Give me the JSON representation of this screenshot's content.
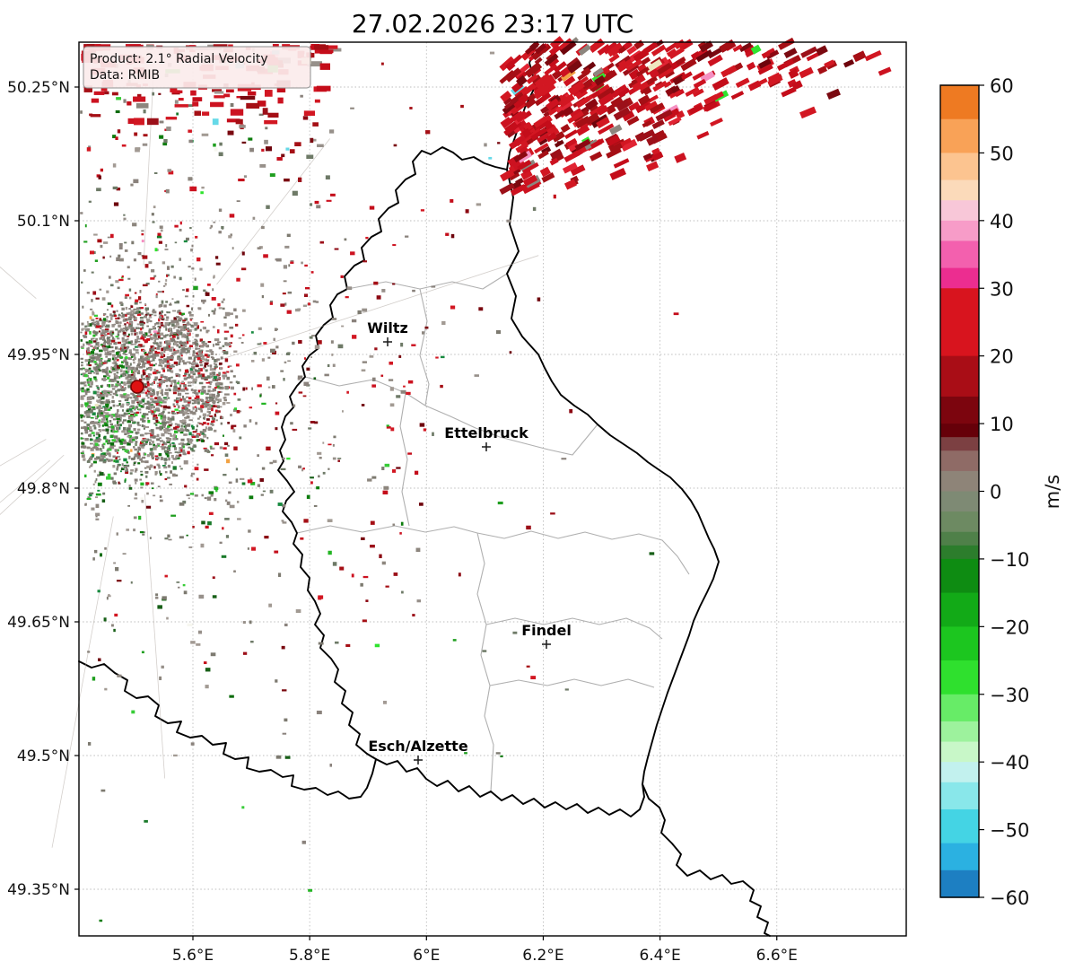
{
  "title": "27.02.2026 23:17 UTC",
  "info_box": {
    "line1": "Product: 2.1° Radial Velocity",
    "line2": "Data: RMIB"
  },
  "axes": {
    "x_ticks": [
      {
        "label": "5.6°E",
        "lon": 5.6
      },
      {
        "label": "5.8°E",
        "lon": 5.8
      },
      {
        "label": "6°E",
        "lon": 6.0
      },
      {
        "label": "6.2°E",
        "lon": 6.2
      },
      {
        "label": "6.4°E",
        "lon": 6.4
      },
      {
        "label": "6.6°E",
        "lon": 6.6
      }
    ],
    "y_ticks": [
      {
        "label": "50.25°N",
        "lat": 50.25
      },
      {
        "label": "50.1°N",
        "lat": 50.1
      },
      {
        "label": "49.95°N",
        "lat": 49.95
      },
      {
        "label": "49.8°N",
        "lat": 49.8
      },
      {
        "label": "49.65°N",
        "lat": 49.65
      },
      {
        "label": "49.5°N",
        "lat": 49.5
      },
      {
        "label": "49.35°N",
        "lat": 49.35
      }
    ]
  },
  "map": {
    "cities": [
      {
        "name": "Wiltz"
      },
      {
        "name": "Ettelbruck"
      },
      {
        "name": "Findel"
      },
      {
        "name": "Esch/Alzette"
      }
    ]
  },
  "colorbar": {
    "unit": "m/s",
    "ticks": [
      {
        "label": "60",
        "value": 60
      },
      {
        "label": "50",
        "value": 50
      },
      {
        "label": "40",
        "value": 40
      },
      {
        "label": "30",
        "value": 30
      },
      {
        "label": "20",
        "value": 20
      },
      {
        "label": "10",
        "value": 10
      },
      {
        "label": "0",
        "value": 0
      },
      {
        "label": "−10",
        "value": -10
      },
      {
        "label": "−20",
        "value": -20
      },
      {
        "label": "−30",
        "value": -30
      },
      {
        "label": "−40",
        "value": -40
      },
      {
        "label": "−50",
        "value": -50
      },
      {
        "label": "−60",
        "value": -60
      }
    ],
    "segments": [
      {
        "from": 60,
        "to": 55,
        "color": "#ee7a22"
      },
      {
        "from": 55,
        "to": 50,
        "color": "#f9a257"
      },
      {
        "from": 50,
        "to": 46,
        "color": "#fcc490"
      },
      {
        "from": 46,
        "to": 43,
        "color": "#fbdaba"
      },
      {
        "from": 43,
        "to": 40,
        "color": "#f8c7d8"
      },
      {
        "from": 40,
        "to": 37,
        "color": "#f79cc8"
      },
      {
        "from": 37,
        "to": 33,
        "color": "#f360ae"
      },
      {
        "from": 33,
        "to": 30,
        "color": "#ec2d90"
      },
      {
        "from": 30,
        "to": 20,
        "color": "#d8141e"
      },
      {
        "from": 20,
        "to": 14,
        "color": "#a90d16"
      },
      {
        "from": 14,
        "to": 10,
        "color": "#7c050e"
      },
      {
        "from": 10,
        "to": 8,
        "color": "#660009"
      },
      {
        "from": 8,
        "to": 6,
        "color": "#7c4042"
      },
      {
        "from": 6,
        "to": 3,
        "color": "#8f6b66"
      },
      {
        "from": 3,
        "to": 0,
        "color": "#8e8478"
      },
      {
        "from": 0,
        "to": -3,
        "color": "#7e8a74"
      },
      {
        "from": -3,
        "to": -6,
        "color": "#6d8a62"
      },
      {
        "from": -6,
        "to": -8,
        "color": "#4f8049"
      },
      {
        "from": -8,
        "to": -10,
        "color": "#2c7d2c"
      },
      {
        "from": -10,
        "to": -15,
        "color": "#0e8c12"
      },
      {
        "from": -15,
        "to": -20,
        "color": "#12aa17"
      },
      {
        "from": -20,
        "to": -25,
        "color": "#1cc61f"
      },
      {
        "from": -25,
        "to": -30,
        "color": "#2fe02e"
      },
      {
        "from": -30,
        "to": -34,
        "color": "#67ec67"
      },
      {
        "from": -34,
        "to": -37,
        "color": "#9df29d"
      },
      {
        "from": -37,
        "to": -40,
        "color": "#c8f7c8"
      },
      {
        "from": -40,
        "to": -43,
        "color": "#c2f1ee"
      },
      {
        "from": -43,
        "to": -47,
        "color": "#89e7ea"
      },
      {
        "from": -47,
        "to": -52,
        "color": "#44d4e4"
      },
      {
        "from": -52,
        "to": -56,
        "color": "#2bb1e1"
      },
      {
        "from": -56,
        "to": -60,
        "color": "#1d7fc2"
      }
    ]
  },
  "radar": {
    "site_color": "#e01212",
    "palettes": {
      "gray": [
        "#8d867e",
        "#97908a",
        "#7d7a70",
        "#6e7a67",
        "#a29a93",
        "#8a827c"
      ],
      "green": [
        "#1f9e1f",
        "#24b524",
        "#0c7c0c",
        "#37cc37",
        "#188a40"
      ],
      "darkgreen": [
        "#0b6b0b",
        "#175f17",
        "#1a7a2a"
      ],
      "red": [
        "#c40d1a",
        "#d21722",
        "#a50f15",
        "#cc1220"
      ],
      "darkred": [
        "#8c0711",
        "#6e040c",
        "#9c1019",
        "#7a0910"
      ],
      "outliers": [
        "#f590c2",
        "#f2a243",
        "#66d9e8",
        "#efe6c0",
        "#f7f7f0",
        "#2fe32e",
        "#8d867e"
      ]
    }
  }
}
